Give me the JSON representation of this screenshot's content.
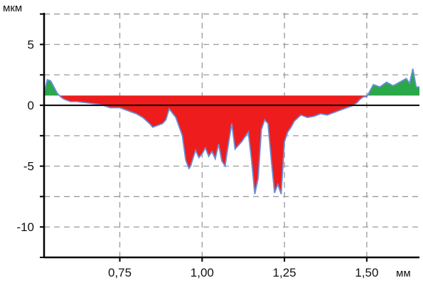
{
  "chart_data": {
    "type": "area",
    "title": "",
    "ylabel": "мкм",
    "xlabel": "мм",
    "xlim": [
      0.52,
      1.66
    ],
    "ylim": [
      -12.5,
      7.6
    ],
    "grid": true,
    "x_ticks": [
      {
        "value": 0.75,
        "label": "0,75"
      },
      {
        "value": 1.0,
        "label": "1,00"
      },
      {
        "value": 1.25,
        "label": "1,25"
      },
      {
        "value": 1.5,
        "label": "1,50"
      }
    ],
    "y_ticks": [
      {
        "value": 5,
        "label": "5"
      },
      {
        "value": 0,
        "label": "0"
      },
      {
        "value": -5,
        "label": "-5"
      },
      {
        "value": -10,
        "label": "-10"
      }
    ],
    "reference_level": 0.8,
    "colors": {
      "above": "#2aa84a",
      "below": "#ee1c1c",
      "profile": "#6a8fd8",
      "grid": "#9a9a9a",
      "axis": "#000000"
    },
    "series": [
      {
        "x": [
          0.52,
          0.53,
          0.54,
          0.55,
          0.56,
          0.57,
          0.58,
          0.6,
          0.62,
          0.65,
          0.68,
          0.7,
          0.72,
          0.75,
          0.78,
          0.8,
          0.82,
          0.84,
          0.85,
          0.86,
          0.87,
          0.88,
          0.89,
          0.9,
          0.92,
          0.94,
          0.95,
          0.96,
          0.965,
          0.98,
          0.99,
          1.0,
          1.01,
          1.02,
          1.03,
          1.04,
          1.05,
          1.06,
          1.07,
          1.075,
          1.09,
          1.1,
          1.12,
          1.14,
          1.15,
          1.16,
          1.17,
          1.18,
          1.19,
          1.2,
          1.21,
          1.22,
          1.23,
          1.24,
          1.25,
          1.26,
          1.27,
          1.28,
          1.3,
          1.32,
          1.34,
          1.36,
          1.38,
          1.4,
          1.42,
          1.44,
          1.46,
          1.47,
          1.48,
          1.49,
          1.5,
          1.52,
          1.54,
          1.56,
          1.58,
          1.6,
          1.62,
          1.63,
          1.64,
          1.65,
          1.66
        ],
        "y": [
          1.0,
          2.1,
          2.0,
          1.5,
          1.0,
          0.7,
          0.5,
          0.3,
          0.3,
          0.2,
          0.1,
          0.0,
          -0.2,
          -0.2,
          -0.5,
          -0.7,
          -1.0,
          -1.5,
          -1.8,
          -1.7,
          -1.6,
          -1.5,
          -1.2,
          -0.3,
          -1.0,
          -2.5,
          -4.5,
          -5.2,
          -5.0,
          -3.7,
          -4.3,
          -4.0,
          -3.5,
          -4.2,
          -3.8,
          -4.4,
          -3.2,
          -4.6,
          -5.0,
          -4.0,
          -1.5,
          -3.6,
          -3.0,
          -2.2,
          -4.5,
          -7.3,
          -6.0,
          -2.0,
          -1.2,
          -1.5,
          -4.5,
          -7.2,
          -6.5,
          -7.3,
          -3.0,
          -2.2,
          -1.8,
          -1.3,
          -0.8,
          -1.0,
          -0.9,
          -0.7,
          -0.8,
          -0.6,
          -0.4,
          -0.2,
          0.0,
          0.2,
          0.5,
          0.7,
          0.7,
          1.7,
          1.5,
          1.9,
          1.6,
          1.9,
          2.2,
          1.8,
          3.0,
          1.5,
          1.5
        ]
      }
    ]
  }
}
